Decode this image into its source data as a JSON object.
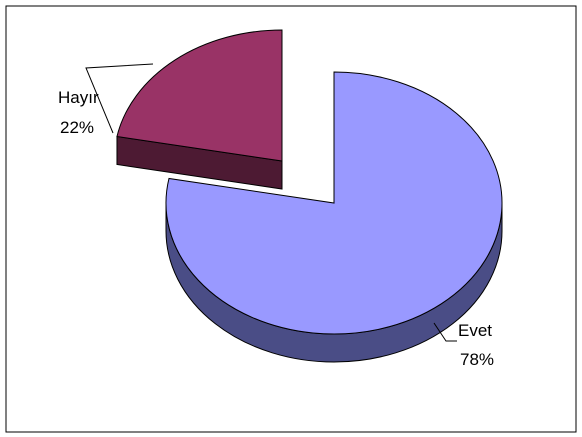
{
  "chart_data": {
    "type": "pie",
    "style": "3d-exploded",
    "slices": [
      {
        "label": "Evet",
        "value": 78,
        "percent_label": "78%",
        "color": "#9999ff",
        "side_color": "#4a4d86"
      },
      {
        "label": "Hayır",
        "value": 22,
        "percent_label": "22%",
        "color": "#993366",
        "side_color": "#4d1a33",
        "exploded": true
      }
    ],
    "legend": "none",
    "background": "#ffffff",
    "border_color": "#000000"
  }
}
